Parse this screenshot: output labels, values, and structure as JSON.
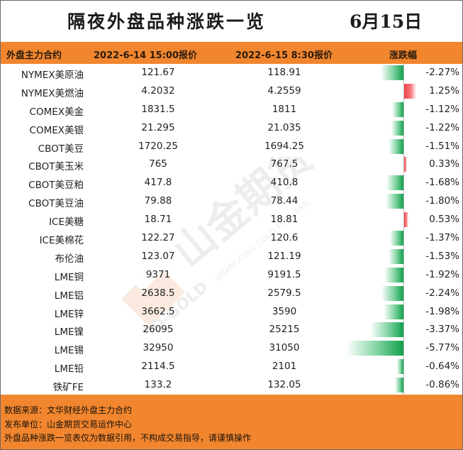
{
  "title": "隔夜外盘品种涨跌一览",
  "date": "6月15日",
  "headers": {
    "name": "外盘主力合约",
    "price1": "2022-6-14 15:00报价",
    "price2": "2022-6-15 8:30报价",
    "change": "涨跌幅"
  },
  "rows": [
    {
      "name": "NYMEX美原油",
      "p1": "121.67",
      "p2": "118.91",
      "chg": "-2.27%",
      "pct": -2.27
    },
    {
      "name": "NYMEX美燃油",
      "p1": "4.2032",
      "p2": "4.2559",
      "chg": "1.25%",
      "pct": 1.25
    },
    {
      "name": "COMEX美金",
      "p1": "1831.5",
      "p2": "1811",
      "chg": "-1.12%",
      "pct": -1.12
    },
    {
      "name": "COMEX美银",
      "p1": "21.295",
      "p2": "21.035",
      "chg": "-1.22%",
      "pct": -1.22
    },
    {
      "name": "CBOT美豆",
      "p1": "1720.25",
      "p2": "1694.25",
      "chg": "-1.51%",
      "pct": -1.51
    },
    {
      "name": "CBOT美玉米",
      "p1": "765",
      "p2": "767.5",
      "chg": "0.33%",
      "pct": 0.33
    },
    {
      "name": "CBOT美豆粕",
      "p1": "417.8",
      "p2": "410.8",
      "chg": "-1.68%",
      "pct": -1.68
    },
    {
      "name": "CBOT美豆油",
      "p1": "79.88",
      "p2": "78.44",
      "chg": "-1.80%",
      "pct": -1.8
    },
    {
      "name": "ICE美糖",
      "p1": "18.71",
      "p2": "18.81",
      "chg": "0.53%",
      "pct": 0.53
    },
    {
      "name": "ICE美棉花",
      "p1": "122.27",
      "p2": "120.6",
      "chg": "-1.37%",
      "pct": -1.37
    },
    {
      "name": "布伦油",
      "p1": "123.07",
      "p2": "121.19",
      "chg": "-1.53%",
      "pct": -1.53
    },
    {
      "name": "LME铜",
      "p1": "9371",
      "p2": "9191.5",
      "chg": "-1.92%",
      "pct": -1.92
    },
    {
      "name": "LME铝",
      "p1": "2638.5",
      "p2": "2579.5",
      "chg": "-2.24%",
      "pct": -2.24
    },
    {
      "name": "LME锌",
      "p1": "3662.5",
      "p2": "3590",
      "chg": "-1.98%",
      "pct": -1.98
    },
    {
      "name": "LME镍",
      "p1": "26095",
      "p2": "25215",
      "chg": "-3.37%",
      "pct": -3.37
    },
    {
      "name": "LME锡",
      "p1": "32950",
      "p2": "31050",
      "chg": "-5.77%",
      "pct": -5.77
    },
    {
      "name": "LME铅",
      "p1": "2114.5",
      "p2": "2101",
      "chg": "-0.64%",
      "pct": -0.64
    },
    {
      "name": "铁矿FE",
      "p1": "133.2",
      "p2": "132.05",
      "chg": "-0.86%",
      "pct": -0.86
    }
  ],
  "colors": {
    "header_bg": "#f1862f",
    "negative": "#11a04d",
    "positive": "#f0393f"
  },
  "footer": {
    "source": "数据来源：文华财经外盘主力合约",
    "publisher": "发布单位：山金期货交易运作中心",
    "disclaimer": "外盘品种涨跌一览表仅为数据引用，不构成交易指导，请谨慎操作"
  },
  "watermark": {
    "brand": "山金期货",
    "sub": "SHANDONG GOLD FUTURES",
    "logo_text": "SD-GOLD"
  }
}
